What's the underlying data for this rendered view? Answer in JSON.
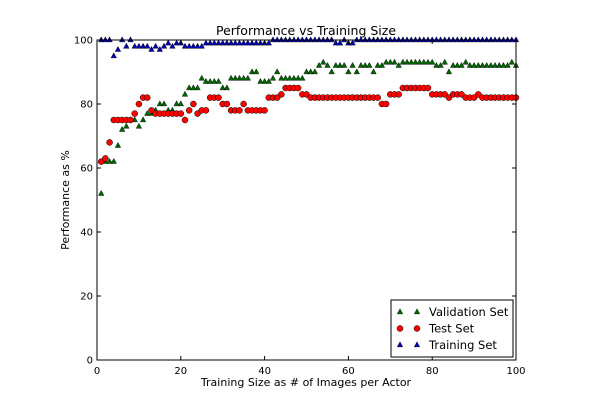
{
  "chart_data": {
    "type": "scatter",
    "title": "Performance vs Training Size",
    "xlabel": "Training Size as # of Images per Actor",
    "ylabel": "Performance as %",
    "xlim": [
      0,
      100
    ],
    "ylim": [
      0,
      100
    ],
    "xticks": [
      0,
      20,
      40,
      60,
      80,
      100
    ],
    "yticks": [
      0,
      20,
      40,
      60,
      80,
      100
    ],
    "grid": false,
    "legend_position": "lower-right",
    "x": [
      1,
      2,
      3,
      4,
      5,
      6,
      7,
      8,
      9,
      10,
      11,
      12,
      13,
      14,
      15,
      16,
      17,
      18,
      19,
      20,
      21,
      22,
      23,
      24,
      25,
      26,
      27,
      28,
      29,
      30,
      31,
      32,
      33,
      34,
      35,
      36,
      37,
      38,
      39,
      40,
      41,
      42,
      43,
      44,
      45,
      46,
      47,
      48,
      49,
      50,
      51,
      52,
      53,
      54,
      55,
      56,
      57,
      58,
      59,
      60,
      61,
      62,
      63,
      64,
      65,
      66,
      67,
      68,
      69,
      70,
      71,
      72,
      73,
      74,
      75,
      76,
      77,
      78,
      79,
      80,
      81,
      82,
      83,
      84,
      85,
      86,
      87,
      88,
      89,
      90,
      91,
      92,
      93,
      94,
      95,
      96,
      97,
      98,
      99,
      100
    ],
    "series": [
      {
        "name": "Validation Set",
        "marker": "triangle",
        "color": "#006400",
        "values": [
          52,
          62,
          62,
          62,
          67,
          72,
          73,
          75,
          75,
          73,
          75,
          77,
          77,
          78,
          80,
          80,
          78,
          78,
          80,
          80,
          83,
          85,
          85,
          85,
          88,
          87,
          87,
          87,
          87,
          85,
          85,
          88,
          88,
          88,
          88,
          88,
          90,
          90,
          87,
          87,
          87,
          88,
          90,
          88,
          88,
          88,
          88,
          88,
          88,
          90,
          90,
          90,
          92,
          93,
          92,
          90,
          92,
          92,
          92,
          90,
          92,
          90,
          92,
          92,
          92,
          90,
          92,
          92,
          93,
          93,
          93,
          92,
          93,
          93,
          93,
          93,
          93,
          93,
          93,
          93,
          92,
          92,
          93,
          90,
          92,
          92,
          92,
          93,
          92,
          92,
          92,
          92,
          92,
          92,
          92,
          92,
          92,
          92,
          93,
          92
        ]
      },
      {
        "name": "Test Set",
        "marker": "circle",
        "color": "#ff0000",
        "values": [
          62,
          63,
          68,
          75,
          75,
          75,
          75,
          75,
          77,
          80,
          82,
          82,
          78,
          77,
          77,
          77,
          77,
          77,
          77,
          77,
          75,
          78,
          80,
          77,
          78,
          78,
          82,
          82,
          82,
          80,
          80,
          78,
          78,
          78,
          80,
          78,
          78,
          78,
          78,
          78,
          82,
          82,
          82,
          83,
          85,
          85,
          85,
          85,
          83,
          83,
          82,
          82,
          82,
          82,
          82,
          82,
          82,
          82,
          82,
          82,
          82,
          82,
          82,
          82,
          82,
          82,
          82,
          80,
          80,
          83,
          83,
          83,
          85,
          85,
          85,
          85,
          85,
          85,
          85,
          83,
          83,
          83,
          83,
          82,
          83,
          83,
          83,
          82,
          82,
          82,
          83,
          82,
          82,
          82,
          82,
          82,
          82,
          82,
          82,
          82
        ]
      },
      {
        "name": "Training Set",
        "marker": "triangle",
        "color": "#0000b0",
        "values": [
          100,
          100,
          100,
          95,
          97,
          100,
          98,
          100,
          98,
          98,
          98,
          98,
          97,
          98,
          97,
          98,
          99,
          98,
          99,
          99,
          98,
          98,
          98,
          98,
          98,
          99,
          99,
          99,
          99,
          99,
          99,
          99,
          99,
          99,
          99,
          99,
          99,
          99,
          99,
          99,
          99,
          100,
          100,
          100,
          100,
          100,
          100,
          100,
          100,
          100,
          100,
          100,
          100,
          100,
          100,
          100,
          99,
          99,
          100,
          99,
          99,
          100,
          100,
          100,
          100,
          100,
          100,
          100,
          100,
          100,
          100,
          100,
          100,
          100,
          100,
          100,
          100,
          100,
          100,
          100,
          100,
          100,
          100,
          100,
          100,
          100,
          100,
          100,
          100,
          100,
          100,
          100,
          100,
          100,
          100,
          100,
          100,
          100,
          100,
          100
        ]
      }
    ]
  }
}
